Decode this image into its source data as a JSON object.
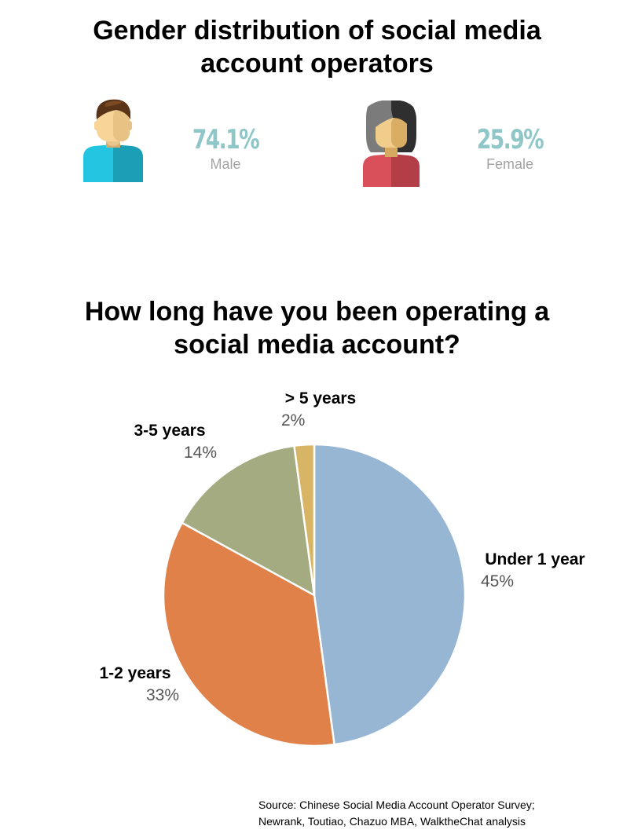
{
  "gender": {
    "title_line1": "Gender distribution of social media",
    "title_line2": "account operators",
    "male": {
      "value": "74.1%",
      "label": "Male",
      "icon": "male-person-icon"
    },
    "female": {
      "value": "25.9%",
      "label": "Female",
      "icon": "female-person-icon"
    },
    "accent_color": "#8fc7c9"
  },
  "chart_title_line1": "How long have you been operating a",
  "chart_title_line2": "social media account?",
  "chart_data": {
    "type": "pie",
    "categories": [
      "Under 1 year",
      "1-2 years",
      "3-5 years",
      "> 5 years"
    ],
    "values": [
      45,
      33,
      14,
      2
    ],
    "value_labels": [
      "45%",
      "33%",
      "14%",
      "2%"
    ],
    "colors": [
      "#97b6d4",
      "#df8149",
      "#a5ab81",
      "#d8b565"
    ]
  },
  "source": {
    "line1": "Source: Chinese Social Media Account Operator Survey;",
    "line2": "Newrank, Toutiao, Chazuo MBA, WalktheChat analysis"
  }
}
